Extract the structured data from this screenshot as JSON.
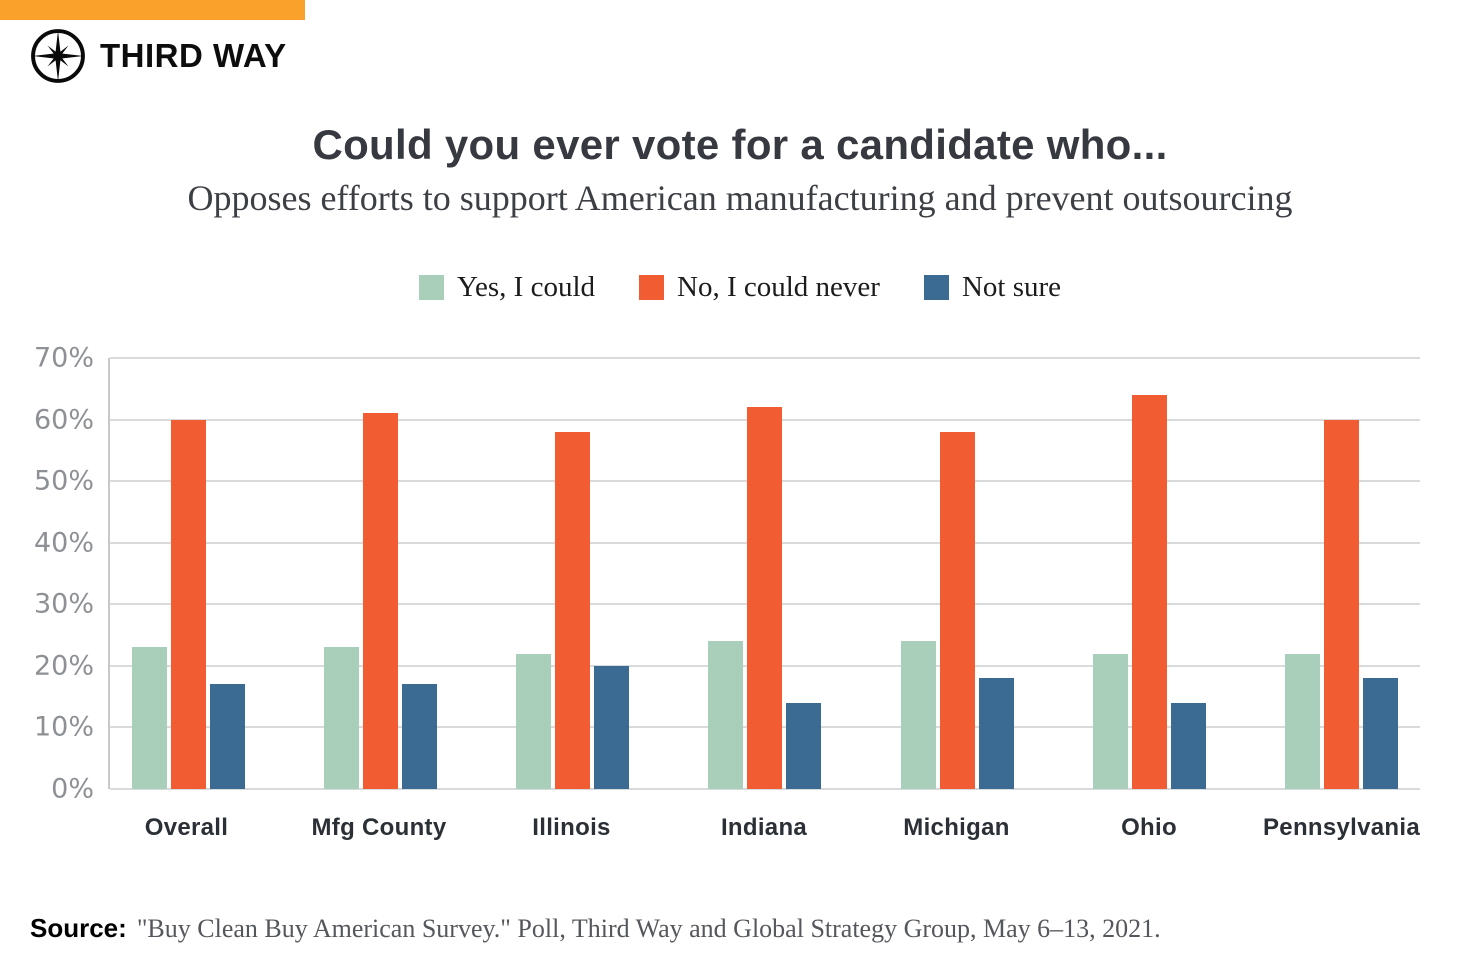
{
  "brand": {
    "name": "THIRD WAY",
    "accent_bar_color": "#F9A12B",
    "logo_icon": "compass-star-icon"
  },
  "chart_data": {
    "type": "bar",
    "title": "Could you ever vote for a candidate who...",
    "subtitle": "Opposes efforts to support American manufacturing and prevent outsourcing",
    "categories": [
      "Overall",
      "Mfg County",
      "Illinois",
      "Indiana",
      "Michigan",
      "Ohio",
      "Pennsylvania"
    ],
    "series": [
      {
        "name": "Yes, I could",
        "color": "#A9CEB9",
        "values": [
          23,
          23,
          22,
          24,
          24,
          22,
          22
        ]
      },
      {
        "name": "No, I could never",
        "color": "#F15C33",
        "values": [
          60,
          61,
          58,
          62,
          58,
          64,
          60
        ]
      },
      {
        "name": "Not sure",
        "color": "#3B6A92",
        "values": [
          17,
          17,
          20,
          14,
          18,
          14,
          18
        ]
      }
    ],
    "xlabel": "",
    "ylabel": "",
    "ylim": [
      0,
      70
    ],
    "ytick_step": 10,
    "ytick_labels": [
      "0%",
      "10%",
      "20%",
      "30%",
      "40%",
      "50%",
      "60%",
      "70%"
    ],
    "grid": "horizontal",
    "legend_position": "top"
  },
  "source": {
    "label": "Source:",
    "text": "\"Buy Clean Buy American Survey.\" Poll, Third Way and Global Strategy Group, May 6–13, 2021."
  }
}
